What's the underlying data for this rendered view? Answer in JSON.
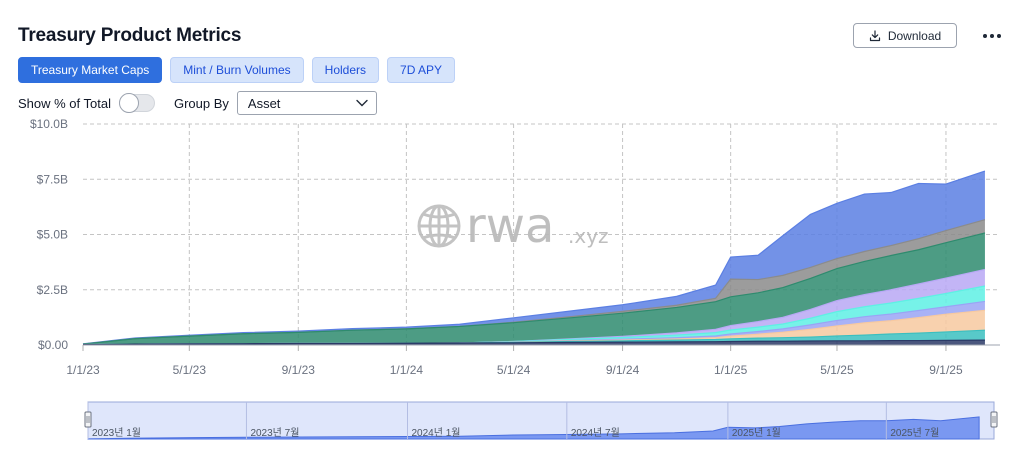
{
  "header": {
    "title": "Treasury Product Metrics",
    "download_label": "Download",
    "more_icon": "more-horizontal-icon",
    "download_icon": "download-icon"
  },
  "tabs": [
    {
      "label": "Treasury Market Caps",
      "active": true
    },
    {
      "label": "Mint / Burn Volumes",
      "active": false
    },
    {
      "label": "Holders",
      "active": false
    },
    {
      "label": "7D APY",
      "active": false
    }
  ],
  "controls": {
    "show_pct_label": "Show % of Total",
    "show_pct_value": false,
    "group_by_label": "Group By",
    "group_by_value": "Asset"
  },
  "watermark": {
    "brand": "rwa",
    "suffix": ".xyz",
    "icon": "globe-icon"
  },
  "colors": {
    "accent": "#2f6fde",
    "tab_bg": "#d6e4fb",
    "tab_text": "#1d4ed8"
  },
  "chart_data": {
    "type": "area",
    "stacked": true,
    "x": [
      "2023-01-01",
      "2023-03-01",
      "2023-05-01",
      "2023-07-01",
      "2023-09-01",
      "2023-11-01",
      "2024-01-01",
      "2024-03-01",
      "2024-05-01",
      "2024-07-01",
      "2024-09-01",
      "2024-11-01",
      "2024-12-15",
      "2025-01-01",
      "2025-02-01",
      "2025-03-01",
      "2025-04-01",
      "2025-05-01",
      "2025-06-01",
      "2025-07-01",
      "2025-08-01",
      "2025-09-01",
      "2025-10-15"
    ],
    "series": [
      {
        "color": "#2b3a67",
        "values": [
          0.02,
          0.04,
          0.05,
          0.06,
          0.07,
          0.07,
          0.08,
          0.09,
          0.1,
          0.12,
          0.13,
          0.14,
          0.15,
          0.16,
          0.17,
          0.17,
          0.18,
          0.19,
          0.19,
          0.2,
          0.2,
          0.21,
          0.22
        ]
      },
      {
        "color": "#3bbfbf",
        "values": [
          0,
          0,
          0,
          0,
          0,
          0,
          0,
          0,
          0.02,
          0.04,
          0.06,
          0.08,
          0.1,
          0.12,
          0.14,
          0.16,
          0.18,
          0.22,
          0.26,
          0.3,
          0.34,
          0.38,
          0.45
        ]
      },
      {
        "color": "#f7c9a0",
        "values": [
          0,
          0,
          0,
          0,
          0,
          0,
          0,
          0,
          0.01,
          0.02,
          0.03,
          0.05,
          0.08,
          0.12,
          0.18,
          0.25,
          0.35,
          0.45,
          0.55,
          0.6,
          0.7,
          0.8,
          0.9
        ]
      },
      {
        "color": "#9aa4f5",
        "values": [
          0,
          0,
          0,
          0,
          0,
          0,
          0,
          0,
          0.01,
          0.02,
          0.04,
          0.06,
          0.08,
          0.1,
          0.12,
          0.15,
          0.2,
          0.25,
          0.28,
          0.3,
          0.32,
          0.34,
          0.4
        ]
      },
      {
        "color": "#5ef0e4",
        "values": [
          0,
          0,
          0,
          0,
          0,
          0,
          0,
          0,
          0.02,
          0.05,
          0.08,
          0.12,
          0.15,
          0.18,
          0.2,
          0.22,
          0.3,
          0.4,
          0.45,
          0.5,
          0.55,
          0.6,
          0.7
        ]
      },
      {
        "color": "#b8a8f5",
        "values": [
          0,
          0,
          0,
          0,
          0,
          0,
          0,
          0,
          0,
          0.02,
          0.05,
          0.1,
          0.15,
          0.2,
          0.25,
          0.3,
          0.4,
          0.5,
          0.55,
          0.6,
          0.65,
          0.7,
          0.75
        ]
      },
      {
        "color": "#2e8b6e",
        "values": [
          0.02,
          0.25,
          0.35,
          0.45,
          0.5,
          0.6,
          0.65,
          0.75,
          0.85,
          0.95,
          1.05,
          1.15,
          1.25,
          1.3,
          1.3,
          1.35,
          1.4,
          1.45,
          1.5,
          1.55,
          1.55,
          1.6,
          1.65
        ]
      },
      {
        "color": "#8b8b8b",
        "values": [
          0,
          0,
          0,
          0,
          0,
          0,
          0,
          0,
          0.02,
          0.05,
          0.08,
          0.1,
          0.15,
          0.8,
          0.6,
          0.55,
          0.5,
          0.45,
          0.45,
          0.45,
          0.5,
          0.55,
          0.6
        ]
      },
      {
        "color": "#5b7fe3",
        "values": [
          0.01,
          0.03,
          0.04,
          0.05,
          0.06,
          0.07,
          0.08,
          0.1,
          0.2,
          0.25,
          0.3,
          0.4,
          0.6,
          1.0,
          1.1,
          1.8,
          2.4,
          2.5,
          2.6,
          2.4,
          2.5,
          2.1,
          2.2
        ]
      }
    ],
    "xticks": [
      "1/1/23",
      "5/1/23",
      "9/1/23",
      "1/1/24",
      "5/1/24",
      "9/1/24",
      "1/1/25",
      "5/1/25",
      "9/1/25"
    ],
    "yticks": [
      "$0.00",
      "$2.5B",
      "$5.0B",
      "$7.5B",
      "$10.0B"
    ],
    "ylim": [
      0,
      10
    ],
    "grid": true,
    "navigator_labels": [
      "2023년 1월",
      "2023년 7월",
      "2024년 1월",
      "2024년 7월",
      "2025년 1월",
      "2025년 7월"
    ],
    "navigator_values": [
      0.05,
      0.33,
      0.49,
      0.62,
      0.72,
      0.82,
      0.88,
      1.0,
      1.43,
      1.63,
      1.86,
      2.27,
      2.88,
      4.23,
      3.99,
      4.5,
      5.43,
      6.09,
      6.57,
      6.58,
      7.09,
      6.58,
      7.97
    ]
  }
}
